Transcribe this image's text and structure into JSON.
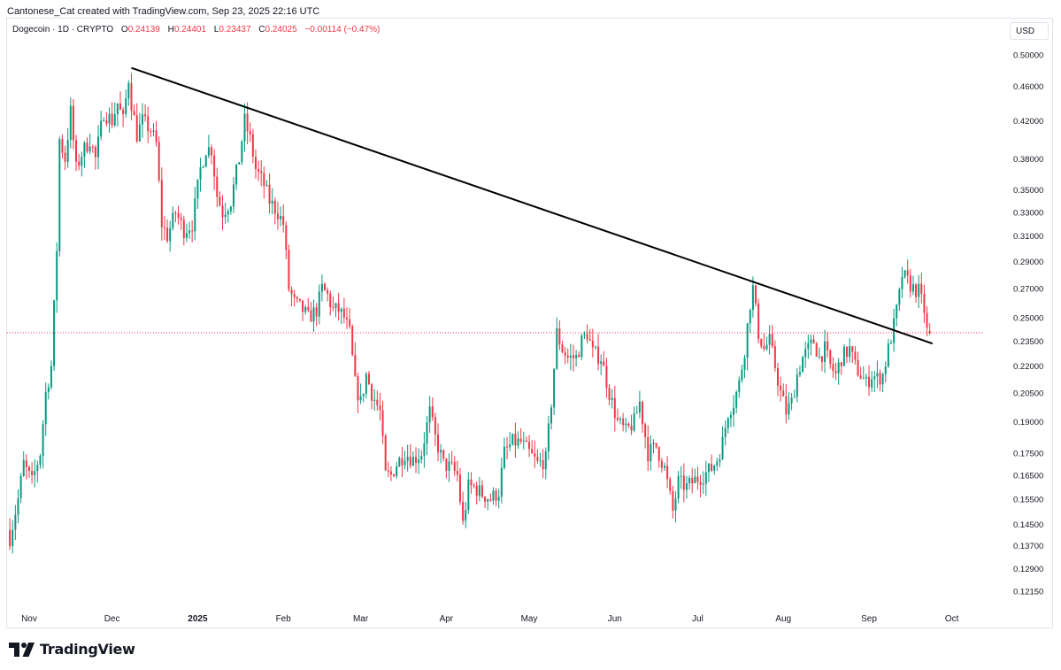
{
  "caption": "Cantonese_Cat created with TradingView.com, Sep 23, 2025 22:16 UTC",
  "legend": {
    "symbol": "Dogecoin · 1D · CRYPTO",
    "o_label": "O",
    "o_value": "0.24139",
    "h_label": "H",
    "h_value": "0.24401",
    "l_label": "L",
    "l_value": "0.23437",
    "c_label": "C",
    "c_value": "0.24025",
    "change": "−0.00114 (−0.47%)"
  },
  "currency": "USD",
  "brand": "TradingView",
  "colors": {
    "up": "#089981",
    "down": "#f23645",
    "trendline": "#000000",
    "price_line": "#f23645",
    "axis_text": "#131722"
  },
  "chart_data": {
    "type": "candlestick",
    "title": "Dogecoin · 1D · CRYPTO",
    "interval": "1D",
    "y_scale": "log",
    "ylim": [
      0.116,
      0.52
    ],
    "xlim": [
      "2024-10-24",
      "2025-10-12"
    ],
    "grid": false,
    "y_ticks": [
      "0.50000",
      "0.46000",
      "0.42000",
      "0.38000",
      "0.35000",
      "0.33000",
      "0.31000",
      "0.29000",
      "0.27000",
      "0.25000",
      "0.23500",
      "0.22000",
      "0.20500",
      "0.19000",
      "0.17500",
      "0.16500",
      "0.15500",
      "0.14500",
      "0.13700",
      "0.12900",
      "0.12150"
    ],
    "x_ticks": [
      {
        "date": "2024-11-01",
        "label": "Nov"
      },
      {
        "date": "2024-12-01",
        "label": "Dec"
      },
      {
        "date": "2025-01-01",
        "label": "2025"
      },
      {
        "date": "2025-02-01",
        "label": "Feb"
      },
      {
        "date": "2025-03-01",
        "label": "Mar"
      },
      {
        "date": "2025-04-01",
        "label": "Apr"
      },
      {
        "date": "2025-05-01",
        "label": "May"
      },
      {
        "date": "2025-06-01",
        "label": "Jun"
      },
      {
        "date": "2025-07-01",
        "label": "Jul"
      },
      {
        "date": "2025-08-01",
        "label": "Aug"
      },
      {
        "date": "2025-09-01",
        "label": "Sep"
      },
      {
        "date": "2025-10-01",
        "label": "Oct"
      }
    ],
    "last_price": 0.24025,
    "trendline": {
      "x1": "2024-12-08",
      "y1": 0.483,
      "x2": "2025-09-24",
      "y2": 0.2335
    },
    "close_path": [
      [
        "2024-10-25",
        0.14
      ],
      [
        "2024-10-28",
        0.155
      ],
      [
        "2024-10-30",
        0.17
      ],
      [
        "2024-11-02",
        0.162
      ],
      [
        "2024-11-05",
        0.175
      ],
      [
        "2024-11-07",
        0.205
      ],
      [
        "2024-11-09",
        0.22
      ],
      [
        "2024-11-11",
        0.3
      ],
      [
        "2024-11-12",
        0.4
      ],
      [
        "2024-11-14",
        0.38
      ],
      [
        "2024-11-16",
        0.43
      ],
      [
        "2024-11-18",
        0.37
      ],
      [
        "2024-11-20",
        0.385
      ],
      [
        "2024-11-23",
        0.4
      ],
      [
        "2024-11-25",
        0.38
      ],
      [
        "2024-11-28",
        0.43
      ],
      [
        "2024-12-01",
        0.42
      ],
      [
        "2024-12-03",
        0.44
      ],
      [
        "2024-12-05",
        0.42
      ],
      [
        "2024-12-07",
        0.47
      ],
      [
        "2024-12-08",
        0.44
      ],
      [
        "2024-12-10",
        0.405
      ],
      [
        "2024-12-12",
        0.42
      ],
      [
        "2024-12-15",
        0.41
      ],
      [
        "2024-12-17",
        0.395
      ],
      [
        "2024-12-19",
        0.32
      ],
      [
        "2024-12-21",
        0.31
      ],
      [
        "2024-12-24",
        0.33
      ],
      [
        "2024-12-27",
        0.315
      ],
      [
        "2024-12-30",
        0.32
      ],
      [
        "2025-01-02",
        0.37
      ],
      [
        "2025-01-04",
        0.39
      ],
      [
        "2025-01-06",
        0.39
      ],
      [
        "2025-01-08",
        0.345
      ],
      [
        "2025-01-10",
        0.33
      ],
      [
        "2025-01-13",
        0.34
      ],
      [
        "2025-01-16",
        0.38
      ],
      [
        "2025-01-18",
        0.42
      ],
      [
        "2025-01-20",
        0.4
      ],
      [
        "2025-01-22",
        0.37
      ],
      [
        "2025-01-25",
        0.355
      ],
      [
        "2025-01-27",
        0.34
      ],
      [
        "2025-01-30",
        0.33
      ],
      [
        "2025-02-01",
        0.32
      ],
      [
        "2025-02-03",
        0.27
      ],
      [
        "2025-02-05",
        0.26
      ],
      [
        "2025-02-08",
        0.255
      ],
      [
        "2025-02-10",
        0.25
      ],
      [
        "2025-02-13",
        0.255
      ],
      [
        "2025-02-15",
        0.27
      ],
      [
        "2025-02-17",
        0.265
      ],
      [
        "2025-02-19",
        0.255
      ],
      [
        "2025-02-21",
        0.255
      ],
      [
        "2025-02-23",
        0.25
      ],
      [
        "2025-02-25",
        0.24
      ],
      [
        "2025-02-27",
        0.21
      ],
      [
        "2025-03-01",
        0.2
      ],
      [
        "2025-03-03",
        0.215
      ],
      [
        "2025-03-05",
        0.205
      ],
      [
        "2025-03-08",
        0.195
      ],
      [
        "2025-03-10",
        0.165
      ],
      [
        "2025-03-12",
        0.165
      ],
      [
        "2025-03-14",
        0.17
      ],
      [
        "2025-03-17",
        0.175
      ],
      [
        "2025-03-20",
        0.172
      ],
      [
        "2025-03-23",
        0.175
      ],
      [
        "2025-03-26",
        0.195
      ],
      [
        "2025-03-28",
        0.182
      ],
      [
        "2025-03-31",
        0.17
      ],
      [
        "2025-04-03",
        0.168
      ],
      [
        "2025-04-05",
        0.165
      ],
      [
        "2025-04-07",
        0.145
      ],
      [
        "2025-04-09",
        0.16
      ],
      [
        "2025-04-11",
        0.16
      ],
      [
        "2025-04-14",
        0.157
      ],
      [
        "2025-04-17",
        0.155
      ],
      [
        "2025-04-20",
        0.158
      ],
      [
        "2025-04-22",
        0.175
      ],
      [
        "2025-04-25",
        0.18
      ],
      [
        "2025-04-28",
        0.18
      ],
      [
        "2025-05-01",
        0.175
      ],
      [
        "2025-05-04",
        0.17
      ],
      [
        "2025-05-07",
        0.172
      ],
      [
        "2025-05-09",
        0.2
      ],
      [
        "2025-05-11",
        0.24
      ],
      [
        "2025-05-13",
        0.23
      ],
      [
        "2025-05-15",
        0.225
      ],
      [
        "2025-05-18",
        0.225
      ],
      [
        "2025-05-20",
        0.235
      ],
      [
        "2025-05-22",
        0.24
      ],
      [
        "2025-05-24",
        0.228
      ],
      [
        "2025-05-27",
        0.225
      ],
      [
        "2025-05-30",
        0.205
      ],
      [
        "2025-06-02",
        0.19
      ],
      [
        "2025-06-05",
        0.185
      ],
      [
        "2025-06-08",
        0.19
      ],
      [
        "2025-06-10",
        0.2
      ],
      [
        "2025-06-13",
        0.175
      ],
      [
        "2025-06-16",
        0.178
      ],
      [
        "2025-06-19",
        0.168
      ],
      [
        "2025-06-22",
        0.15
      ],
      [
        "2025-06-24",
        0.162
      ],
      [
        "2025-06-27",
        0.16
      ],
      [
        "2025-06-30",
        0.163
      ],
      [
        "2025-07-03",
        0.165
      ],
      [
        "2025-07-06",
        0.168
      ],
      [
        "2025-07-08",
        0.172
      ],
      [
        "2025-07-10",
        0.18
      ],
      [
        "2025-07-12",
        0.195
      ],
      [
        "2025-07-14",
        0.2
      ],
      [
        "2025-07-16",
        0.21
      ],
      [
        "2025-07-18",
        0.23
      ],
      [
        "2025-07-20",
        0.26
      ],
      [
        "2025-07-21",
        0.27
      ],
      [
        "2025-07-23",
        0.24
      ],
      [
        "2025-07-25",
        0.23
      ],
      [
        "2025-07-27",
        0.235
      ],
      [
        "2025-07-29",
        0.22
      ],
      [
        "2025-07-31",
        0.205
      ],
      [
        "2025-08-02",
        0.195
      ],
      [
        "2025-08-04",
        0.2
      ],
      [
        "2025-08-06",
        0.215
      ],
      [
        "2025-08-08",
        0.225
      ],
      [
        "2025-08-10",
        0.23
      ],
      [
        "2025-08-12",
        0.235
      ],
      [
        "2025-08-14",
        0.225
      ],
      [
        "2025-08-16",
        0.23
      ],
      [
        "2025-08-18",
        0.22
      ],
      [
        "2025-08-20",
        0.215
      ],
      [
        "2025-08-22",
        0.225
      ],
      [
        "2025-08-25",
        0.23
      ],
      [
        "2025-08-27",
        0.22
      ],
      [
        "2025-08-29",
        0.215
      ],
      [
        "2025-08-31",
        0.21
      ],
      [
        "2025-09-02",
        0.215
      ],
      [
        "2025-09-04",
        0.213
      ],
      [
        "2025-09-06",
        0.215
      ],
      [
        "2025-09-08",
        0.23
      ],
      [
        "2025-09-10",
        0.245
      ],
      [
        "2025-09-12",
        0.265
      ],
      [
        "2025-09-13",
        0.28
      ],
      [
        "2025-09-15",
        0.275
      ],
      [
        "2025-09-17",
        0.27
      ],
      [
        "2025-09-19",
        0.268
      ],
      [
        "2025-09-21",
        0.255
      ],
      [
        "2025-09-22",
        0.241
      ],
      [
        "2025-09-23",
        0.24
      ]
    ]
  }
}
